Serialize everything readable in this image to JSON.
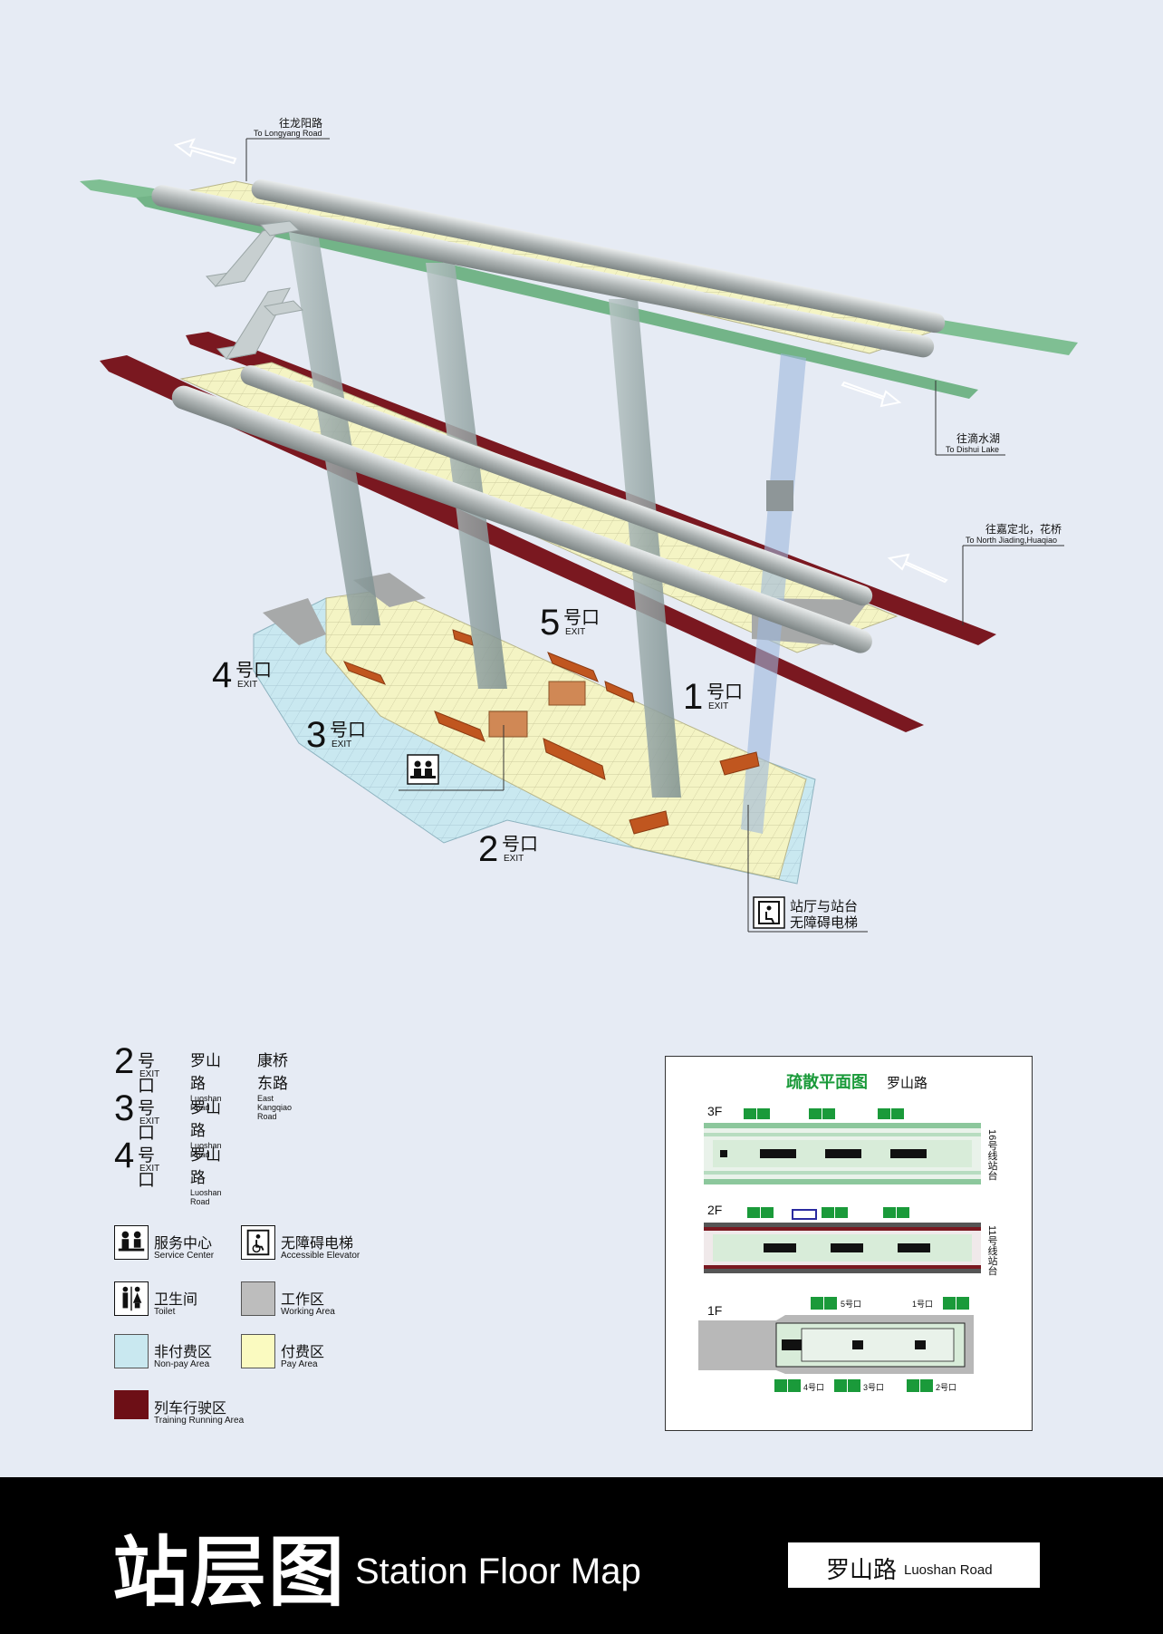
{
  "map": {
    "direction_longyang": {
      "cn": "往龙阳路",
      "en": "To Longyang Road"
    },
    "direction_dishui": {
      "cn": "往滴水湖",
      "en": "To Dishui Lake"
    },
    "direction_jiading": {
      "cn": "往嘉定北，花桥",
      "en": "To North Jiading,Huaqiao"
    },
    "exits": [
      {
        "num": "5",
        "cn": "号口",
        "en": "EXIT"
      },
      {
        "num": "4",
        "cn": "号口",
        "en": "EXIT"
      },
      {
        "num": "1",
        "cn": "号口",
        "en": "EXIT"
      },
      {
        "num": "3",
        "cn": "号口",
        "en": "EXIT"
      },
      {
        "num": "2",
        "cn": "号口",
        "en": "EXIT"
      }
    ],
    "elevator_callout": {
      "line1": "站厅与站台",
      "line2": "无障碍电梯"
    }
  },
  "exit_legend": [
    {
      "num": "2",
      "cn": "号口",
      "en": "EXIT",
      "roads": [
        {
          "cn": "罗山路",
          "en": "Luoshan Road"
        },
        {
          "cn": "康桥东路",
          "en": "East Kangqiao Road"
        }
      ]
    },
    {
      "num": "3",
      "cn": "号口",
      "en": "EXIT",
      "roads": [
        {
          "cn": "罗山路",
          "en": "Luoshan Road"
        }
      ]
    },
    {
      "num": "4",
      "cn": "号口",
      "en": "EXIT",
      "roads": [
        {
          "cn": "罗山路",
          "en": "Luoshan Road"
        }
      ]
    }
  ],
  "legend": {
    "service_center": {
      "cn": "服务中心",
      "en": "Service Center",
      "icon": "service-center-icon"
    },
    "elevator": {
      "cn": "无障碍电梯",
      "en": "Accessible Elevator",
      "icon": "accessible-elevator-icon"
    },
    "toilet": {
      "cn": "卫生间",
      "en": "Toilet",
      "icon": "toilet-icon"
    },
    "working_area": {
      "cn": "工作区",
      "en": "Working Area",
      "color": "#bdbdbd"
    },
    "non_pay": {
      "cn": "非付费区",
      "en": "Non-pay Area",
      "color": "#c9e8f0"
    },
    "pay": {
      "cn": "付费区",
      "en": "Pay Area",
      "color": "#fafac0"
    },
    "running": {
      "cn": "列车行驶区",
      "en": "Training Running Area",
      "color": "#6d0f16"
    }
  },
  "evacuation": {
    "title_cn": "疏散平面图",
    "station": "罗山路",
    "floors": {
      "f3": "3F",
      "f2": "2F",
      "f1": "1F"
    },
    "line16": "16号线站台",
    "line11": "11号线站台",
    "exit_labels": {
      "e5": "5号口",
      "e1": "1号口",
      "e4": "4号口",
      "e3": "3号口",
      "e2": "2号口"
    }
  },
  "footer": {
    "title_cn": "站层图",
    "title_en": "Station Floor Map",
    "station_cn": "罗山路",
    "station_en": "Luoshan Road"
  },
  "colors": {
    "line16_green": "#8cc79c",
    "line11_red": "#7a1820",
    "pay_area": "#fafac0",
    "non_pay_area": "#c9e8f0",
    "exit_green": "#1a9a3a"
  }
}
